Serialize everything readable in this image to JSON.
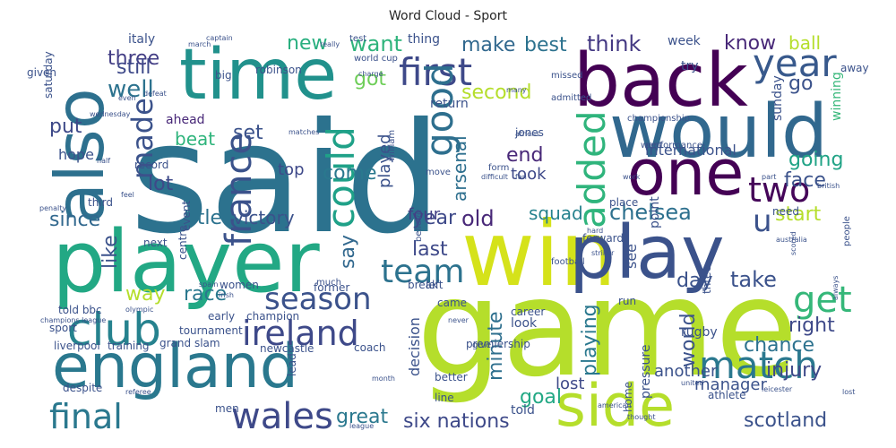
{
  "chart_data": {
    "type": "wordcloud",
    "title": "Word Cloud - Sport",
    "colormap": "viridis",
    "words": [
      {
        "text": "said",
        "weight": 1.0,
        "color": "#2c728e"
      },
      {
        "text": "game",
        "weight": 0.86,
        "color": "#b5de2b"
      },
      {
        "text": "player",
        "weight": 0.72,
        "color": "#22a884"
      },
      {
        "text": "win",
        "weight": 0.7,
        "color": "#d5e21a"
      },
      {
        "text": "time",
        "weight": 0.55,
        "color": "#21918c"
      },
      {
        "text": "back",
        "weight": 0.56,
        "color": "#440154"
      },
      {
        "text": "would",
        "weight": 0.53,
        "color": "#31688e"
      },
      {
        "text": "also",
        "weight": 0.5,
        "color": "#2d708e"
      },
      {
        "text": "play",
        "weight": 0.5,
        "color": "#3b528b"
      },
      {
        "text": "england",
        "weight": 0.46,
        "color": "#2a788e"
      },
      {
        "text": "one",
        "weight": 0.43,
        "color": "#440154"
      },
      {
        "text": "side",
        "weight": 0.4,
        "color": "#b5de2b"
      },
      {
        "text": "first",
        "weight": 0.32,
        "color": "#3e4989"
      },
      {
        "text": "club",
        "weight": 0.3,
        "color": "#26828e"
      },
      {
        "text": "france",
        "weight": 0.26,
        "color": "#3b528b"
      },
      {
        "text": "year",
        "weight": 0.24,
        "color": "#38598c"
      },
      {
        "text": "could",
        "weight": 0.24,
        "color": "#1fa188"
      },
      {
        "text": "good",
        "weight": 0.24,
        "color": "#2e6f8e"
      },
      {
        "text": "added",
        "weight": 0.24,
        "color": "#2fb47c"
      },
      {
        "text": "match",
        "weight": 0.24,
        "color": "#2a788e"
      },
      {
        "text": "wales",
        "weight": 0.22,
        "color": "#3e4989"
      },
      {
        "text": "ireland",
        "weight": 0.21,
        "color": "#3e4989"
      },
      {
        "text": "team",
        "weight": 0.2,
        "color": "#2c728e"
      },
      {
        "text": "season",
        "weight": 0.2,
        "color": "#3b528b"
      },
      {
        "text": "two",
        "weight": 0.2,
        "color": "#450559"
      },
      {
        "text": "final",
        "weight": 0.18,
        "color": "#2a788e"
      },
      {
        "text": "get",
        "weight": 0.18,
        "color": "#35b779"
      },
      {
        "text": "made",
        "weight": 0.15,
        "color": "#3b528b"
      },
      {
        "text": "second",
        "weight": 0.14,
        "color": "#b5de2b"
      },
      {
        "text": "well",
        "weight": 0.12,
        "color": "#2c728e"
      },
      {
        "text": "chelsea",
        "weight": 0.13,
        "color": "#2d708e"
      },
      {
        "text": "victory",
        "weight": 0.11,
        "color": "#3b528b"
      },
      {
        "text": "arsenal",
        "weight": 0.11,
        "color": "#2e6f8e"
      },
      {
        "text": "three",
        "weight": 0.11,
        "color": "#433e85"
      },
      {
        "text": "new",
        "weight": 0.1,
        "color": "#29af7f"
      },
      {
        "text": "want",
        "weight": 0.1,
        "color": "#2fb47c"
      },
      {
        "text": "make",
        "weight": 0.1,
        "color": "#31688e"
      },
      {
        "text": "think",
        "weight": 0.12,
        "color": "#443983"
      },
      {
        "text": "know",
        "weight": 0.1,
        "color": "#482878"
      },
      {
        "text": "got",
        "weight": 0.1,
        "color": "#6ece58"
      },
      {
        "text": "best",
        "weight": 0.1,
        "color": "#2c728e"
      },
      {
        "text": "still",
        "weight": 0.1,
        "color": "#3e4989"
      },
      {
        "text": "ball",
        "weight": 0.1,
        "color": "#b5de2b"
      },
      {
        "text": "go",
        "weight": 0.1,
        "color": "#3b528b"
      },
      {
        "text": "going",
        "weight": 0.1,
        "color": "#20a386"
      },
      {
        "text": "year ",
        "weight": 0.1,
        "color": "#3e4989"
      },
      {
        "text": "old",
        "weight": 0.11,
        "color": "#482878"
      },
      {
        "text": "put",
        "weight": 0.1,
        "color": "#3e4989"
      },
      {
        "text": "set",
        "weight": 0.1,
        "color": "#3b528b"
      },
      {
        "text": "end",
        "weight": 0.1,
        "color": "#482878"
      },
      {
        "text": "come",
        "weight": 0.09,
        "color": "#2a788e"
      },
      {
        "text": "lot",
        "weight": 0.09,
        "color": "#3e4989"
      },
      {
        "text": "beat",
        "weight": 0.08,
        "color": "#2fb47c"
      },
      {
        "text": "title",
        "weight": 0.09,
        "color": "#2c728e"
      },
      {
        "text": "since",
        "weight": 0.09,
        "color": "#31688e"
      },
      {
        "text": "start",
        "weight": 0.09,
        "color": "#b5de2b"
      },
      {
        "text": "last",
        "weight": 0.08,
        "color": "#3e4989"
      },
      {
        "text": "like",
        "weight": 0.08,
        "color": "#3b528b"
      },
      {
        "text": "say",
        "weight": 0.08,
        "color": "#31688e"
      },
      {
        "text": "took",
        "weight": 0.07,
        "color": "#3e4989"
      },
      {
        "text": "played",
        "weight": 0.07,
        "color": "#3b528b"
      },
      {
        "text": "squad",
        "weight": 0.07,
        "color": "#26828e"
      },
      {
        "text": "four",
        "weight": 0.07,
        "color": "#433e85"
      },
      {
        "text": "way",
        "weight": 0.08,
        "color": "#b5de2b"
      },
      {
        "text": "race",
        "weight": 0.08,
        "color": "#2a788e"
      },
      {
        "text": "day",
        "weight": 0.08,
        "color": "#3b528b"
      },
      {
        "text": "take",
        "weight": 0.09,
        "color": "#3b528b"
      },
      {
        "text": "chance",
        "weight": 0.08,
        "color": "#2c728e"
      },
      {
        "text": "right",
        "weight": 0.08,
        "color": "#3e4989"
      },
      {
        "text": "injury",
        "weight": 0.08,
        "color": "#3e4989"
      },
      {
        "text": "world",
        "weight": 0.08,
        "color": "#3b528b"
      },
      {
        "text": "face",
        "weight": 0.07,
        "color": "#3b528b"
      },
      {
        "text": "playing",
        "weight": 0.08,
        "color": "#2a788e"
      },
      {
        "text": "minute",
        "weight": 0.07,
        "color": "#2e6f8e"
      },
      {
        "text": "goal",
        "weight": 0.08,
        "color": "#22a884"
      },
      {
        "text": "great",
        "weight": 0.07,
        "color": "#2a788e"
      },
      {
        "text": "six nations",
        "weight": 0.07,
        "color": "#3e4989"
      },
      {
        "text": "manager",
        "weight": 0.07,
        "color": "#3b528b"
      },
      {
        "text": "scotland",
        "weight": 0.07,
        "color": "#3b528b"
      },
      {
        "text": "lost",
        "weight": 0.06,
        "color": "#3e4989"
      },
      {
        "text": "told",
        "weight": 0.05,
        "color": "#3b528b"
      },
      {
        "text": "decision",
        "weight": 0.06,
        "color": "#3b528b"
      },
      {
        "text": "international",
        "weight": 0.06,
        "color": "#3b528b"
      },
      {
        "text": "top",
        "weight": 0.06,
        "color": "#3e4989"
      },
      {
        "text": "hope",
        "weight": 0.05,
        "color": "#3b528b"
      },
      {
        "text": "winning",
        "weight": 0.05,
        "color": "#35b779"
      },
      {
        "text": "u",
        "weight": 0.08,
        "color": "#3b528b"
      },
      {
        "text": "italy",
        "weight": 0.05,
        "color": "#3b528b"
      },
      {
        "text": "week",
        "weight": 0.05,
        "color": "#3b528b"
      },
      {
        "text": "thing",
        "weight": 0.05,
        "color": "#3b528b"
      },
      {
        "text": "try",
        "weight": 0.05,
        "color": "#3b528b"
      },
      {
        "text": "sunday",
        "weight": 0.04,
        "color": "#3b528b"
      },
      {
        "text": "jones",
        "weight": 0.04,
        "color": "#3b528b"
      },
      {
        "text": "return",
        "weight": 0.04,
        "color": "#3b528b"
      },
      {
        "text": "saturday",
        "weight": 0.04,
        "color": "#3b528b"
      },
      {
        "text": "robinson",
        "weight": 0.04,
        "color": "#3b528b"
      },
      {
        "text": "record",
        "weight": 0.04,
        "color": "#3b528b"
      },
      {
        "text": "ahead",
        "weight": 0.04,
        "color": "#482878"
      },
      {
        "text": "sport",
        "weight": 0.04,
        "color": "#3b528b"
      },
      {
        "text": "early",
        "weight": 0.04,
        "color": "#3b528b"
      },
      {
        "text": "champion",
        "weight": 0.04,
        "color": "#3b528b"
      },
      {
        "text": "tournament",
        "weight": 0.04,
        "color": "#3b528b"
      },
      {
        "text": "grand slam",
        "weight": 0.04,
        "color": "#3b528b"
      },
      {
        "text": "liverpool",
        "weight": 0.04,
        "color": "#3b528b"
      },
      {
        "text": "training",
        "weight": 0.04,
        "color": "#3b528b"
      },
      {
        "text": "coach",
        "weight": 0.04,
        "color": "#3b528b"
      },
      {
        "text": "newcastle",
        "weight": 0.04,
        "color": "#3b528b"
      },
      {
        "text": "rugby",
        "weight": 0.04,
        "color": "#3b528b"
      },
      {
        "text": "career",
        "weight": 0.04,
        "color": "#3b528b"
      },
      {
        "text": "look",
        "weight": 0.04,
        "color": "#3b528b"
      },
      {
        "text": "came",
        "weight": 0.04,
        "color": "#3b528b"
      },
      {
        "text": "see",
        "weight": 0.05,
        "color": "#3b528b"
      },
      {
        "text": "point",
        "weight": 0.04,
        "color": "#3b528b"
      },
      {
        "text": "place",
        "weight": 0.04,
        "color": "#3b528b"
      },
      {
        "text": "forward",
        "weight": 0.04,
        "color": "#3b528b"
      },
      {
        "text": "pressure",
        "weight": 0.04,
        "color": "#3b528b"
      },
      {
        "text": "another",
        "weight": 0.04,
        "color": "#3b528b"
      },
      {
        "text": "away",
        "weight": 0.05,
        "color": "#3b528b"
      },
      {
        "text": "three ",
        "weight": 0.04,
        "color": "#3b528b"
      },
      {
        "text": "need",
        "weight": 0.04,
        "color": "#3b528b"
      },
      {
        "text": "people",
        "weight": 0.03,
        "color": "#3b528b"
      },
      {
        "text": "premiership",
        "weight": 0.03,
        "color": "#3b528b"
      },
      {
        "text": "despite",
        "weight": 0.04,
        "color": "#3b528b"
      },
      {
        "text": "better",
        "weight": 0.03,
        "color": "#3b528b"
      },
      {
        "text": "line",
        "weight": 0.03,
        "color": "#3b528b"
      },
      {
        "text": "break",
        "weight": 0.03,
        "color": "#3b528b"
      },
      {
        "text": "left",
        "weight": 0.03,
        "color": "#3b528b"
      },
      {
        "text": "told bbc",
        "weight": 0.03,
        "color": "#3b528b"
      },
      {
        "text": "women",
        "weight": 0.03,
        "color": "#3b528b"
      },
      {
        "text": "former",
        "weight": 0.03,
        "color": "#3b528b"
      },
      {
        "text": "much",
        "weight": 0.03,
        "color": "#3b528b"
      },
      {
        "text": "men",
        "weight": 0.03,
        "color": "#3b528b"
      },
      {
        "text": "athlete",
        "weight": 0.03,
        "color": "#3b528b"
      },
      {
        "text": "run",
        "weight": 0.04,
        "color": "#3b528b"
      },
      {
        "text": "home",
        "weight": 0.03,
        "color": "#3b528b"
      },
      {
        "text": "big",
        "weight": 0.03,
        "color": "#3b528b"
      },
      {
        "text": "given",
        "weight": 0.03,
        "color": "#3b528b"
      },
      {
        "text": "test",
        "weight": 0.03,
        "color": "#3b528b"
      },
      {
        "text": "world cup",
        "weight": 0.03,
        "color": "#3b528b"
      },
      {
        "text": "missed",
        "weight": 0.03,
        "color": "#3b528b"
      },
      {
        "text": "william",
        "weight": 0.03,
        "color": "#3b528b"
      },
      {
        "text": "believe",
        "weight": 0.03,
        "color": "#3b528b"
      },
      {
        "text": "admitted",
        "weight": 0.03,
        "color": "#3b528b"
      },
      {
        "text": "championship",
        "weight": 0.03,
        "color": "#3b528b"
      },
      {
        "text": "performance",
        "weight": 0.03,
        "color": "#3b528b"
      },
      {
        "text": "went",
        "weight": 0.03,
        "color": "#3b528b"
      },
      {
        "text": "form",
        "weight": 0.03,
        "color": "#3b528b"
      },
      {
        "text": "move",
        "weight": 0.03,
        "color": "#3b528b"
      },
      {
        "text": "give",
        "weight": 0.03,
        "color": "#3b528b"
      },
      {
        "text": "lead",
        "weight": 0.03,
        "color": "#3b528b"
      },
      {
        "text": "centre",
        "weight": 0.03,
        "color": "#3b528b"
      },
      {
        "text": "next",
        "weight": 0.03,
        "color": "#3b528b"
      },
      {
        "text": "third",
        "weight": 0.03,
        "color": "#3b528b"
      },
      {
        "text": "event",
        "weight": 0.03,
        "color": "#3b528b"
      },
      {
        "text": "football",
        "weight": 0.03,
        "color": "#3b528b"
      },
      {
        "text": "never",
        "weight": 0.03,
        "color": "#3b528b"
      },
      {
        "text": "really",
        "weight": 0.03,
        "color": "#3b528b"
      },
      {
        "text": "defeat",
        "weight": 0.03,
        "color": "#3b528b"
      },
      {
        "text": "feel",
        "weight": 0.02,
        "color": "#3b528b"
      },
      {
        "text": "captain",
        "weight": 0.02,
        "color": "#3b528b"
      },
      {
        "text": "champions league",
        "weight": 0.02,
        "color": "#3b528b"
      },
      {
        "text": "olympic",
        "weight": 0.02,
        "color": "#3b528b"
      },
      {
        "text": "fan",
        "weight": 0.02,
        "color": "#3b528b"
      },
      {
        "text": "difficult",
        "weight": 0.02,
        "color": "#3b528b"
      },
      {
        "text": "part",
        "weight": 0.02,
        "color": "#3b528b"
      },
      {
        "text": "leicester",
        "weight": 0.02,
        "color": "#3b528b"
      },
      {
        "text": "referee",
        "weight": 0.02,
        "color": "#3b528b"
      },
      {
        "text": "league",
        "weight": 0.02,
        "color": "#3b528b"
      },
      {
        "text": "charge",
        "weight": 0.02,
        "color": "#3b528b"
      },
      {
        "text": "march",
        "weight": 0.02,
        "color": "#3b528b"
      },
      {
        "text": "wednesday",
        "weight": 0.02,
        "color": "#3b528b"
      },
      {
        "text": "irish",
        "weight": 0.02,
        "color": "#3b528b"
      },
      {
        "text": "spain",
        "weight": 0.02,
        "color": "#3b528b"
      },
      {
        "text": "matches",
        "weight": 0.02,
        "color": "#3b528b"
      },
      {
        "text": "athens",
        "weight": 0.02,
        "color": "#3b528b"
      },
      {
        "text": "hard",
        "weight": 0.02,
        "color": "#3b528b"
      },
      {
        "text": "thought",
        "weight": 0.02,
        "color": "#3b528b"
      },
      {
        "text": "scored",
        "weight": 0.02,
        "color": "#3b528b"
      },
      {
        "text": "always",
        "weight": 0.02,
        "color": "#3b528b"
      },
      {
        "text": "month",
        "weight": 0.02,
        "color": "#3b528b"
      },
      {
        "text": "striker",
        "weight": 0.02,
        "color": "#3b528b"
      },
      {
        "text": "australia",
        "weight": 0.02,
        "color": "#3b528b"
      },
      {
        "text": "many",
        "weight": 0.02,
        "color": "#3b528b"
      },
      {
        "text": "even",
        "weight": 0.02,
        "color": "#3b528b"
      },
      {
        "text": "penalty",
        "weight": 0.02,
        "color": "#3b528b"
      },
      {
        "text": "work",
        "weight": 0.02,
        "color": "#3b528b"
      },
      {
        "text": "british",
        "weight": 0.02,
        "color": "#3b528b"
      },
      {
        "text": "american",
        "weight": 0.02,
        "color": "#3b528b"
      },
      {
        "text": "united",
        "weight": 0.02,
        "color": "#3b528b"
      },
      {
        "text": "lost ",
        "weight": 0.02,
        "color": "#3b528b"
      },
      {
        "text": "half",
        "weight": 0.02,
        "color": "#3b528b"
      },
      {
        "text": "file",
        "weight": 0.02,
        "color": "#3b528b"
      },
      {
        "text": "man",
        "weight": 0.02,
        "color": "#3b528b"
      },
      {
        "text": "boy",
        "weight": 0.02,
        "color": "#3b528b"
      },
      {
        "text": "produce",
        "weight": 0.02,
        "color": "#3b528b"
      }
    ]
  }
}
